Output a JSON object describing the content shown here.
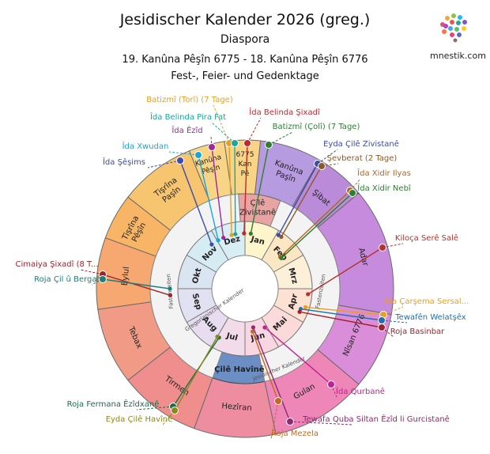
{
  "header": {
    "title": "Jesidischer Kalender 2026 (greg.)",
    "subtitle": "Diaspora",
    "range": "19. Kanûna Pêşîn 6775 - 18. Kanûna Pêşîn 6776",
    "caption": "Fest-, Feier- und Gedenktage",
    "site": "mnestik.com"
  },
  "center_label": "Çilê Havînê",
  "ring_labels": {
    "greg": "Gregorianischer Kalender",
    "yez": "Jesidischer Kalender",
    "fast_winter": "Fastenzeiten",
    "fast_spring": "Fastenzeiten"
  },
  "outer_months": [
    {
      "name": "Kanûna Pêşîn",
      "color": "#f7d486"
    },
    {
      "name": "Tişrîna Paşîn",
      "color": "#f7c470"
    },
    {
      "name": "Tişrîna Pêşîn",
      "color": "#f7b565"
    },
    {
      "name": "Eylul",
      "color": "#f7a770"
    },
    {
      "name": "Tebax",
      "color": "#f19b87"
    },
    {
      "name": "Tirmeh",
      "color": "#ef8e8c"
    },
    {
      "name": "Hezîran",
      "color": "#ef8da0"
    },
    {
      "name": "Gulan",
      "color": "#ee86b7"
    },
    {
      "name": "Nîsan 6776",
      "color": "#da8dd8"
    },
    {
      "name": "Adar",
      "color": "#c68bdc"
    },
    {
      "name": "Şibat",
      "color": "#b98bd8"
    },
    {
      "name": "Kanûna Paşîn",
      "color": "#b79be0"
    },
    {
      "name": "6775 Kan Pê",
      "color": "#f7d486"
    }
  ],
  "yez_months_mid": [
    {
      "name": "Çilê Zivistanê",
      "color": "#e8a3a3"
    }
  ],
  "greg_months": [
    {
      "name": "Jan",
      "color": "#fff5cc"
    },
    {
      "name": "Feb",
      "color": "#fce7c5"
    },
    {
      "name": "Mrz",
      "color": "#fdf0d8"
    },
    {
      "name": "Apr",
      "color": "#fde2d3"
    },
    {
      "name": "Mai",
      "color": "#fbdada"
    },
    {
      "name": "Jun",
      "color": "#f9d7e2"
    },
    {
      "name": "Jul",
      "color": "#f3dcea"
    },
    {
      "name": "Aug",
      "color": "#e8dcf0"
    },
    {
      "name": "Sep",
      "color": "#e1e1f2"
    },
    {
      "name": "Okt",
      "color": "#d9e6f2"
    },
    {
      "name": "Nov",
      "color": "#d4ecf2"
    },
    {
      "name": "Dez",
      "color": "#d8eef4"
    }
  ],
  "events": [
    {
      "label": "Batizmî (Torî) (7 Tage)",
      "color": "#e8a020"
    },
    {
      "label": "Îda Belinda Pira Fat",
      "color": "#1aa7a0"
    },
    {
      "label": "Îda Belinda Şixadî",
      "color": "#c0282d"
    },
    {
      "label": "Batizmî (Çolî) (7 Tage)",
      "color": "#2e7d32"
    },
    {
      "label": "Îda Êzîd",
      "color": "#9c2a9c"
    },
    {
      "label": "Îda Xwudan",
      "color": "#16a7d9"
    },
    {
      "label": "Îda Şêşims",
      "color": "#3b4ba8"
    },
    {
      "label": "Eyda Çilê Zivistanê",
      "color": "#3b4ba8"
    },
    {
      "label": "Şevberat (2 Tage)",
      "color": "#8a5a2b"
    },
    {
      "label": "Îda Xidir Ilyas",
      "color": "#b5651d"
    },
    {
      "label": "Îda Xidir Nebî",
      "color": "#2e7d32"
    },
    {
      "label": "Kiloça Serê Salê",
      "color": "#b5332f"
    },
    {
      "label": "Cimaiya Şixadî (8 T...",
      "color": "#a31f2c"
    },
    {
      "label": "Roja Çil û Bergah",
      "color": "#1b7f7a"
    },
    {
      "label": "Îda Çarşema Sersal...",
      "color": "#e8a020"
    },
    {
      "label": "Tewafên Welatşêx",
      "color": "#1f6fae"
    },
    {
      "label": "Roja Basinbar",
      "color": "#a31f2c"
    },
    {
      "label": "Îda Qurbanê",
      "color": "#c21f95"
    },
    {
      "label": "Tewafa Quba Siltan Êzîd li Gurcistanê",
      "color": "#8e2a6f"
    },
    {
      "label": "Roja Mezela",
      "color": "#c7681a"
    },
    {
      "label": "Roja Fermana Êzîdxanê",
      "color": "#1b6e4a"
    },
    {
      "label": "Eyda Çilê Havînê",
      "color": "#8a8a1a"
    }
  ]
}
